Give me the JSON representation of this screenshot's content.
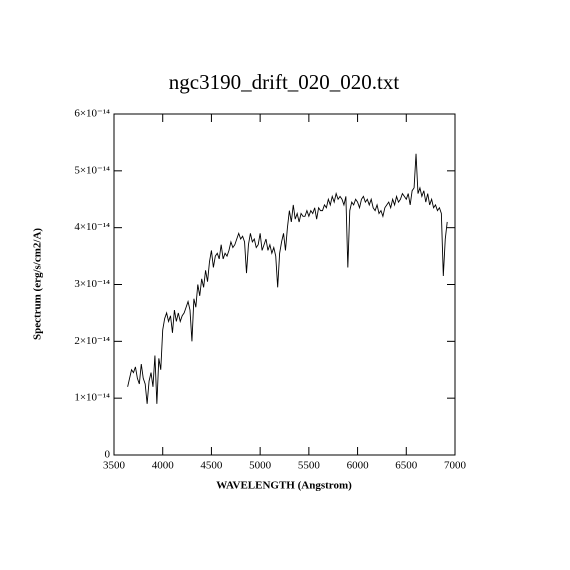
{
  "chart_data": {
    "type": "line",
    "title": "ngc3190_drift_020_020.txt",
    "xlabel": "WAVELENGTH (Angstrom)",
    "ylabel": "Spectrum (erg/s/cm2/A)",
    "color": "#000000",
    "xlim": [
      3500,
      7000
    ],
    "xticks": [
      3500,
      4000,
      4500,
      5000,
      5500,
      6000,
      6500,
      7000
    ],
    "ylim": [
      0,
      6e-14
    ],
    "yticks": [
      0,
      {
        "value": 1e-14,
        "label": "1×10⁻¹⁴"
      },
      {
        "value": 2e-14,
        "label": "2×10⁻¹⁴"
      },
      {
        "value": 3e-14,
        "label": "3×10⁻¹⁴"
      },
      {
        "value": 4e-14,
        "label": "4×10⁻¹⁴"
      },
      {
        "value": 5e-14,
        "label": "5×10⁻¹⁴"
      },
      {
        "value": 6e-14,
        "label": "6×10⁻¹⁴"
      }
    ],
    "x": [
      3640,
      3660,
      3680,
      3700,
      3720,
      3740,
      3760,
      3780,
      3800,
      3820,
      3840,
      3860,
      3880,
      3900,
      3920,
      3940,
      3960,
      3980,
      4000,
      4020,
      4040,
      4060,
      4080,
      4100,
      4120,
      4140,
      4160,
      4180,
      4200,
      4220,
      4240,
      4260,
      4280,
      4300,
      4320,
      4340,
      4360,
      4380,
      4400,
      4420,
      4440,
      4460,
      4480,
      4500,
      4520,
      4540,
      4560,
      4580,
      4600,
      4620,
      4640,
      4660,
      4680,
      4700,
      4720,
      4740,
      4760,
      4780,
      4800,
      4820,
      4840,
      4860,
      4880,
      4900,
      4920,
      4940,
      4960,
      4980,
      5000,
      5020,
      5040,
      5060,
      5080,
      5100,
      5120,
      5140,
      5160,
      5180,
      5200,
      5220,
      5240,
      5260,
      5280,
      5300,
      5320,
      5340,
      5360,
      5380,
      5400,
      5420,
      5440,
      5460,
      5480,
      5500,
      5520,
      5540,
      5560,
      5580,
      5600,
      5620,
      5640,
      5660,
      5680,
      5700,
      5720,
      5740,
      5760,
      5780,
      5800,
      5820,
      5840,
      5860,
      5880,
      5900,
      5920,
      5940,
      5960,
      5980,
      6000,
      6020,
      6040,
      6060,
      6080,
      6100,
      6120,
      6140,
      6160,
      6180,
      6200,
      6220,
      6240,
      6260,
      6280,
      6300,
      6320,
      6340,
      6360,
      6380,
      6400,
      6420,
      6440,
      6460,
      6480,
      6500,
      6520,
      6540,
      6560,
      6580,
      6600,
      6620,
      6640,
      6660,
      6680,
      6700,
      6720,
      6740,
      6760,
      6780,
      6800,
      6820,
      6840,
      6860,
      6880,
      6900,
      6920
    ],
    "values": [
      1.2e-14,
      1.35e-14,
      1.5e-14,
      1.45e-14,
      1.55e-14,
      1.35e-14,
      1.25e-14,
      1.6e-14,
      1.35e-14,
      1.25e-14,
      9e-15,
      1.3e-14,
      1.45e-14,
      1.2e-14,
      1.75e-14,
      9e-15,
      1.7e-14,
      1.5e-14,
      2.2e-14,
      2.4e-14,
      2.5e-14,
      2.35e-14,
      2.45e-14,
      2.15e-14,
      2.55e-14,
      2.35e-14,
      2.5e-14,
      2.35e-14,
      2.45e-14,
      2.5e-14,
      2.6e-14,
      2.7e-14,
      2.55e-14,
      2e-14,
      2.75e-14,
      2.6e-14,
      3e-14,
      2.8e-14,
      3.1e-14,
      2.95e-14,
      3.25e-14,
      3.05e-14,
      3.4e-14,
      3.6e-14,
      3.3e-14,
      3.5e-14,
      3.55e-14,
      3.45e-14,
      3.7e-14,
      3.45e-14,
      3.55e-14,
      3.5e-14,
      3.6e-14,
      3.75e-14,
      3.65e-14,
      3.7e-14,
      3.8e-14,
      3.9e-14,
      3.8e-14,
      3.85e-14,
      3.75e-14,
      3.2e-14,
      3.7e-14,
      3.9e-14,
      3.75e-14,
      3.8e-14,
      3.65e-14,
      3.7e-14,
      3.9e-14,
      3.6e-14,
      3.7e-14,
      3.8e-14,
      3.6e-14,
      3.7e-14,
      3.55e-14,
      3.65e-14,
      3.5e-14,
      2.95e-14,
      3.55e-14,
      3.75e-14,
      3.9e-14,
      3.6e-14,
      4e-14,
      4.3e-14,
      4.1e-14,
      4.4e-14,
      4.15e-14,
      4.25e-14,
      4.1e-14,
      4.25e-14,
      4.2e-14,
      4.2e-14,
      4.3e-14,
      4.2e-14,
      4.3e-14,
      4.25e-14,
      4.35e-14,
      4.15e-14,
      4.35e-14,
      4.3e-14,
      4.3e-14,
      4.4e-14,
      4.35e-14,
      4.5e-14,
      4.4e-14,
      4.55e-14,
      4.45e-14,
      4.6e-14,
      4.5e-14,
      4.55e-14,
      4.5e-14,
      4.4e-14,
      4.55e-14,
      3.3e-14,
      4.3e-14,
      4.45e-14,
      4.4e-14,
      4.5e-14,
      4.45e-14,
      4.35e-14,
      4.5e-14,
      4.55e-14,
      4.45e-14,
      4.5e-14,
      4.4e-14,
      4.5e-14,
      4.35e-14,
      4.3e-14,
      4.4e-14,
      4.25e-14,
      4.3e-14,
      4.2e-14,
      4.35e-14,
      4.4e-14,
      4.45e-14,
      4.35e-14,
      4.5e-14,
      4.4e-14,
      4.55e-14,
      4.45e-14,
      4.5e-14,
      4.6e-14,
      4.55e-14,
      4.5e-14,
      4.6e-14,
      4.4e-14,
      4.65e-14,
      4.7e-14,
      5.3e-14,
      4.6e-14,
      4.7e-14,
      4.55e-14,
      4.65e-14,
      4.45e-14,
      4.6e-14,
      4.4e-14,
      4.5e-14,
      4.35e-14,
      4.4e-14,
      4.3e-14,
      4.35e-14,
      4.25e-14,
      3.15e-14,
      3.8e-14,
      4.1e-14
    ]
  }
}
